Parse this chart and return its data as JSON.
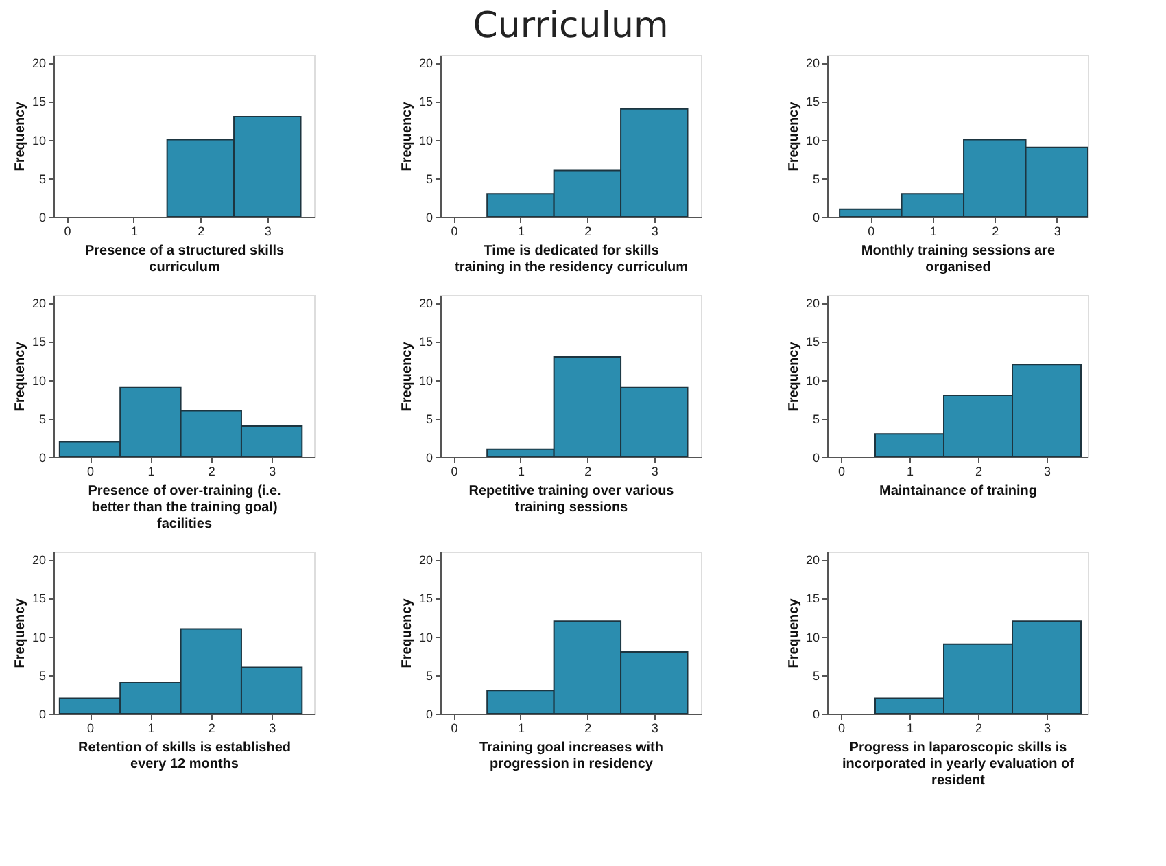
{
  "chart_data": [
    {
      "type": "histogram",
      "xlabel": "Presence of a structured skills curriculum",
      "ylabel": "Frequency",
      "bins": [
        -0.5,
        0.5,
        1.5,
        2.5,
        3.5
      ],
      "values": [
        0,
        0,
        10,
        13
      ],
      "color": "#2b8daf",
      "xlim": [
        -0.2,
        3.7
      ],
      "ylim": [
        0,
        21
      ],
      "xticks": [
        0,
        1,
        2,
        3
      ],
      "yticks": [
        0,
        5,
        10,
        15,
        20
      ],
      "grid": false
    },
    {
      "type": "histogram",
      "title": "Curriculum",
      "xlabel": "Time is dedicated for skills training in the residency curriculum",
      "ylabel": "Frequency",
      "bins": [
        -0.5,
        0.5,
        1.5,
        2.5,
        3.5
      ],
      "values": [
        0,
        3,
        6,
        14
      ],
      "color": "#2b8daf",
      "xlim": [
        -0.2,
        3.7
      ],
      "ylim": [
        0,
        21
      ],
      "xticks": [
        0,
        1,
        2,
        3
      ],
      "yticks": [
        0,
        5,
        10,
        15,
        20
      ],
      "grid": false
    },
    {
      "type": "histogram",
      "xlabel": "Monthly training sessions are organised",
      "ylabel": "Frequency",
      "bins": [
        -0.5,
        0.5,
        1.5,
        2.5,
        3.5
      ],
      "values": [
        1,
        3,
        10,
        9
      ],
      "color": "#2b8daf",
      "xlim": [
        -0.7,
        3.5
      ],
      "ylim": [
        0,
        21
      ],
      "xticks": [
        0,
        1,
        2,
        3
      ],
      "yticks": [
        0,
        5,
        10,
        15,
        20
      ],
      "grid": false
    },
    {
      "type": "histogram",
      "xlabel": "Presence of over-training (i.e. better than the training goal) facilities",
      "ylabel": "Frequency",
      "bins": [
        -0.5,
        0.5,
        1.5,
        2.5,
        3.5
      ],
      "values": [
        2,
        9,
        6,
        4
      ],
      "color": "#2b8daf",
      "xlim": [
        -0.6,
        3.7
      ],
      "ylim": [
        0,
        21
      ],
      "xticks": [
        0,
        1,
        2,
        3
      ],
      "yticks": [
        0,
        5,
        10,
        15,
        20
      ],
      "grid": false
    },
    {
      "type": "histogram",
      "xlabel": "Repetitive training over various training sessions",
      "ylabel": "Frequency",
      "bins": [
        -0.5,
        0.5,
        1.5,
        2.5,
        3.5
      ],
      "values": [
        0,
        1,
        13,
        9
      ],
      "color": "#2b8daf",
      "xlim": [
        -0.2,
        3.7
      ],
      "ylim": [
        0,
        21
      ],
      "xticks": [
        0,
        1,
        2,
        3
      ],
      "yticks": [
        0,
        5,
        10,
        15,
        20
      ],
      "grid": false
    },
    {
      "type": "histogram",
      "xlabel": "Maintainance of training",
      "ylabel": "Frequency",
      "bins": [
        -0.5,
        0.5,
        1.5,
        2.5,
        3.5
      ],
      "values": [
        0,
        3,
        8,
        12
      ],
      "color": "#2b8daf",
      "xlim": [
        -0.2,
        3.6
      ],
      "ylim": [
        0,
        21
      ],
      "xticks": [
        0,
        1,
        2,
        3
      ],
      "yticks": [
        0,
        5,
        10,
        15,
        20
      ],
      "grid": false
    },
    {
      "type": "histogram",
      "xlabel": "Retention of skills is established every 12 months",
      "ylabel": "Frequency",
      "bins": [
        -0.5,
        0.5,
        1.5,
        2.5,
        3.5
      ],
      "values": [
        2,
        4,
        11,
        6
      ],
      "color": "#2b8daf",
      "xlim": [
        -0.6,
        3.7
      ],
      "ylim": [
        0,
        21
      ],
      "xticks": [
        0,
        1,
        2,
        3
      ],
      "yticks": [
        0,
        5,
        10,
        15,
        20
      ],
      "grid": false
    },
    {
      "type": "histogram",
      "xlabel": "Training goal increases with progression in residency",
      "ylabel": "Frequency",
      "bins": [
        -0.5,
        0.5,
        1.5,
        2.5,
        3.5
      ],
      "values": [
        0,
        3,
        12,
        8
      ],
      "color": "#2b8daf",
      "xlim": [
        -0.2,
        3.7
      ],
      "ylim": [
        0,
        21
      ],
      "xticks": [
        0,
        1,
        2,
        3
      ],
      "yticks": [
        0,
        5,
        10,
        15,
        20
      ],
      "grid": false
    },
    {
      "type": "histogram",
      "xlabel": "Progress in laparoscopic skills is incorporated in yearly evaluation of resident",
      "ylabel": "Frequency",
      "bins": [
        -0.5,
        0.5,
        1.5,
        2.5,
        3.5
      ],
      "values": [
        0,
        2,
        9,
        12
      ],
      "color": "#2b8daf",
      "xlim": [
        -0.2,
        3.6
      ],
      "ylim": [
        0,
        21
      ],
      "xticks": [
        0,
        1,
        2,
        3
      ],
      "yticks": [
        0,
        5,
        10,
        15,
        20
      ],
      "grid": false
    }
  ]
}
